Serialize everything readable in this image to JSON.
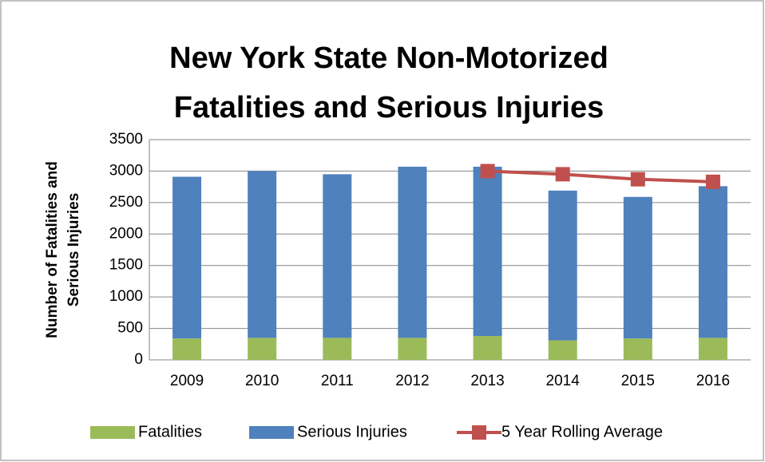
{
  "chart_data": {
    "type": "bar",
    "title": [
      "New York State Non-Motorized",
      "Fatalities and Serious Injuries"
    ],
    "y_label": [
      "Number of Fatalities and",
      "Serious Injuries"
    ],
    "categories": [
      "2009",
      "2010",
      "2011",
      "2012",
      "2013",
      "2014",
      "2015",
      "2016"
    ],
    "stacked": true,
    "series": [
      {
        "name": "Fatalities",
        "color": "#9bbb59",
        "values": [
          340,
          350,
          350,
          350,
          380,
          310,
          340,
          350
        ]
      },
      {
        "name": "Serious Injuries",
        "color": "#4f81bd",
        "values": [
          2570,
          2650,
          2600,
          2720,
          2690,
          2380,
          2250,
          2410
        ]
      },
      {
        "name": "5 Year Rolling Average",
        "color": "#c0504d",
        "type": "line",
        "values": [
          null,
          null,
          null,
          null,
          3000,
          2950,
          2870,
          2830
        ]
      }
    ],
    "ylim": [
      0,
      3500
    ],
    "yticks": [
      0,
      500,
      1000,
      1500,
      2000,
      2500,
      3000,
      3500
    ],
    "grid": true,
    "legend": "bottom"
  }
}
